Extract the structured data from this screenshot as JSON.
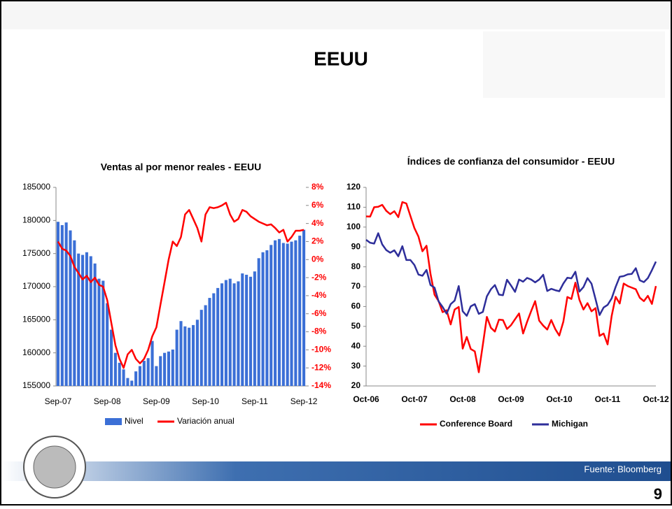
{
  "title": "EEUU",
  "source": "Fuente: Bloomberg",
  "page_number": "9",
  "chart_data": [
    {
      "type": "bar",
      "title": "Ventas al por menor reales - EEUU",
      "categories": [
        "Sep-07",
        null,
        null,
        null,
        null,
        null,
        null,
        null,
        null,
        null,
        null,
        null,
        "Sep-08",
        null,
        null,
        null,
        null,
        null,
        null,
        null,
        null,
        null,
        null,
        null,
        "Sep-09",
        null,
        null,
        null,
        null,
        null,
        null,
        null,
        null,
        null,
        null,
        null,
        "Sep-10",
        null,
        null,
        null,
        null,
        null,
        null,
        null,
        null,
        null,
        null,
        null,
        "Sep-11",
        null,
        null,
        null,
        null,
        null,
        null,
        null,
        null,
        null,
        null,
        null,
        "Sep-12"
      ],
      "series": [
        {
          "name": "Nivel",
          "type": "bar",
          "color": "#3b6fd6",
          "values": [
            179800,
            179300,
            179700,
            178500,
            177000,
            175000,
            174800,
            175200,
            174600,
            173500,
            171200,
            170900,
            167500,
            163500,
            160000,
            158500,
            157500,
            156200,
            155800,
            157200,
            158000,
            158800,
            159200,
            161800,
            158000,
            159500,
            160000,
            160200,
            160500,
            163500,
            164800,
            164000,
            163800,
            164200,
            165000,
            166500,
            167200,
            168300,
            169000,
            169800,
            170500,
            171000,
            171200,
            170500,
            170800,
            172000,
            171800,
            171500,
            172300,
            174300,
            175200,
            175500,
            176300,
            177000,
            177200,
            176600,
            176500,
            176800,
            177000,
            177700,
            178600
          ]
        },
        {
          "name": "Variación anual",
          "type": "line",
          "axis": "y2",
          "color": "#ff0000",
          "values": [
            2.0,
            1.2,
            1.0,
            0.4,
            -0.8,
            -1.5,
            -2.2,
            -1.8,
            -2.5,
            -2.0,
            -2.8,
            -3.0,
            -4.5,
            -7.0,
            -9.5,
            -11.0,
            -12.0,
            -10.5,
            -10.0,
            -11.0,
            -11.5,
            -11.0,
            -10.0,
            -8.5,
            -7.5,
            -5.0,
            -2.5,
            0.0,
            2.0,
            1.5,
            2.5,
            5.0,
            5.5,
            4.5,
            3.5,
            2.0,
            5.0,
            5.8,
            5.7,
            5.8,
            6.0,
            6.3,
            5.0,
            4.2,
            4.5,
            5.5,
            5.3,
            4.8,
            4.5,
            4.2,
            4.0,
            3.8,
            3.9,
            3.5,
            3.0,
            3.3,
            2.0,
            2.5,
            3.2,
            3.2,
            3.3
          ]
        }
      ],
      "ylim": [
        155000,
        185000
      ],
      "yticks": [
        155000,
        160000,
        165000,
        170000,
        175000,
        180000,
        185000
      ],
      "y2lim": [
        -14,
        8
      ],
      "y2ticks": [
        {
          "value": -14,
          "label": "-14%"
        },
        {
          "value": -12,
          "label": "-12%"
        },
        {
          "value": -10,
          "label": "-10%"
        },
        {
          "value": -8,
          "label": "-8%"
        },
        {
          "value": -6,
          "label": "-6%"
        },
        {
          "value": -4,
          "label": "-4%"
        },
        {
          "value": -2,
          "label": "-2%"
        },
        {
          "value": 0,
          "label": "0%"
        },
        {
          "value": 2,
          "label": "2%"
        },
        {
          "value": 4,
          "label": "4%"
        },
        {
          "value": 6,
          "label": "6%"
        },
        {
          "value": 8,
          "label": "8%"
        }
      ],
      "y2color": "#ff0000",
      "legend": "bottom"
    },
    {
      "type": "line",
      "title": "Índices de confianza del consumidor - EEUU",
      "categories": [
        "Oct-06",
        null,
        null,
        null,
        null,
        null,
        null,
        null,
        null,
        null,
        null,
        null,
        "Oct-07",
        null,
        null,
        null,
        null,
        null,
        null,
        null,
        null,
        null,
        null,
        null,
        "Oct-08",
        null,
        null,
        null,
        null,
        null,
        null,
        null,
        null,
        null,
        null,
        null,
        "Oct-09",
        null,
        null,
        null,
        null,
        null,
        null,
        null,
        null,
        null,
        null,
        null,
        "Oct-10",
        null,
        null,
        null,
        null,
        null,
        null,
        null,
        null,
        null,
        null,
        null,
        "Oct-11",
        null,
        null,
        null,
        null,
        null,
        null,
        null,
        null,
        null,
        null,
        null,
        "Oct-12"
      ],
      "series": [
        {
          "name": "Conference Board",
          "color": "#ff0000",
          "values": [
            105.4,
            105.3,
            110.0,
            110.2,
            111.2,
            108.2,
            106.5,
            108.0,
            105.0,
            112.6,
            111.9,
            105.6,
            99.5,
            95.2,
            87.8,
            90.6,
            76.4,
            65.9,
            62.8,
            57.2,
            58.1,
            51.0,
            58.5,
            59.8,
            38.8,
            44.7,
            38.6,
            37.4,
            26.9,
            40.8,
            54.8,
            49.3,
            47.4,
            53.4,
            53.2,
            48.7,
            50.6,
            53.6,
            56.5,
            46.4,
            52.3,
            57.7,
            62.7,
            52.9,
            50.4,
            48.4,
            53.2,
            48.6,
            45.4,
            52.4,
            64.8,
            63.8,
            72.0,
            63.3,
            58.5,
            61.7,
            57.6,
            59.2,
            45.2,
            46.4,
            40.9,
            55.2,
            64.9,
            61.5,
            71.6,
            70.3,
            69.5,
            68.7,
            64.4,
            62.7,
            65.4,
            61.3,
            70.3
          ]
        },
        {
          "name": "Michigan",
          "color": "#2e2e9a",
          "values": [
            93.6,
            92.1,
            91.7,
            96.9,
            91.3,
            88.4,
            87.1,
            88.3,
            85.3,
            90.4,
            83.4,
            83.4,
            80.9,
            76.1,
            75.5,
            78.4,
            70.8,
            69.5,
            62.6,
            59.8,
            56.4,
            61.2,
            63.0,
            70.3,
            57.6,
            55.3,
            60.1,
            61.2,
            56.3,
            57.3,
            65.1,
            68.7,
            70.8,
            66.0,
            65.7,
            73.5,
            70.6,
            67.4,
            73.6,
            72.5,
            74.4,
            73.6,
            72.2,
            73.6,
            76.0,
            67.8,
            68.9,
            68.2,
            67.7,
            71.6,
            74.5,
            74.2,
            77.5,
            67.5,
            69.8,
            74.3,
            71.5,
            63.7,
            55.7,
            59.5,
            60.8,
            64.1,
            69.9,
            75.0,
            75.3,
            76.2,
            76.4,
            79.3,
            73.2,
            72.3,
            74.3,
            78.3,
            82.6
          ]
        }
      ],
      "ylim": [
        20,
        120
      ],
      "yticks": [
        20,
        30,
        40,
        50,
        60,
        70,
        80,
        90,
        100,
        110,
        120
      ],
      "legend": "bottom"
    }
  ]
}
